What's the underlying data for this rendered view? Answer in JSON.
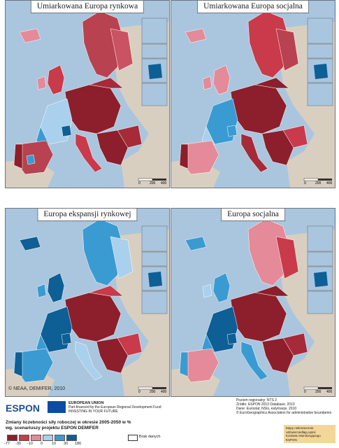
{
  "panels": [
    {
      "title": "Umiarkowana Europa rynkowa"
    },
    {
      "title": "Umiarkowana Europa socjalna"
    },
    {
      "title": "Europa ekspansji rynkowej"
    },
    {
      "title": "Europa socjalna"
    }
  ],
  "scale_labels": [
    "0",
    "200",
    "400"
  ],
  "watermark": "© NEAA, DEMIFER, 2010",
  "footer": {
    "espon_logo": "ESPON",
    "eu_lines": [
      "EUROPEAN UNION",
      "Part-financed by the European Regional Development Fund",
      "INVESTING IN YOUR FUTURE"
    ],
    "meta_lines": [
      "Poziom regionalny: NTS 2",
      "Źródło: ESPON 2013 Database, 2010",
      "Dane: Eurostat, NSIs, estymacje, 2010",
      "© EuroGeographics Association for administrative boundaries"
    ],
    "legend_title_lines": [
      "Zmiany liczebności siły roboczej w okresie 2005-2050 w %",
      "wg. scenariuszy projektu ESPON DEMIFER"
    ],
    "legend_ticks": [
      "-77",
      "-30",
      "-10",
      "0",
      "10",
      "30",
      "186"
    ],
    "legend_colors": [
      "#8c1f2b",
      "#c93a4a",
      "#e58a98",
      "#a9d0ec",
      "#3a9bd2",
      "#0d5f96"
    ],
    "nodata_label": "Brak danych",
    "note_lines": [
      "Mapy niekoniecznie",
      "odzwierciedlają opinii",
      "Komitetu Monitorującego",
      "ESPON"
    ]
  },
  "colors": {
    "sea": "#a9c6de",
    "nonEU": "#d9cfc0",
    "border": "#ffffff"
  }
}
